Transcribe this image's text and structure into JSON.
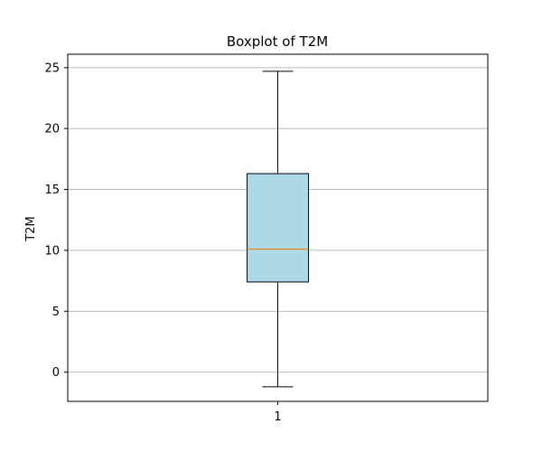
{
  "chart_data": {
    "type": "boxplot",
    "title": "Boxplot of T2M",
    "xlabel": "",
    "ylabel": "T2M",
    "categories": [
      "1"
    ],
    "boxes": [
      {
        "category": "1",
        "whisker_low": -1.2,
        "q1": 7.4,
        "median": 10.1,
        "q3": 16.3,
        "whisker_high": 24.7
      }
    ],
    "ylim": [
      -2.4,
      26.1
    ],
    "yticks": [
      0,
      5,
      10,
      15,
      20,
      25
    ],
    "ytick_labels": [
      "0",
      "5",
      "10",
      "15",
      "20",
      "25"
    ],
    "grid": "y-axis",
    "colors": {
      "box_fill": "#add8e6",
      "median": "#ff7f0e",
      "grid": "#b0b0b0",
      "line": "#000000"
    }
  }
}
